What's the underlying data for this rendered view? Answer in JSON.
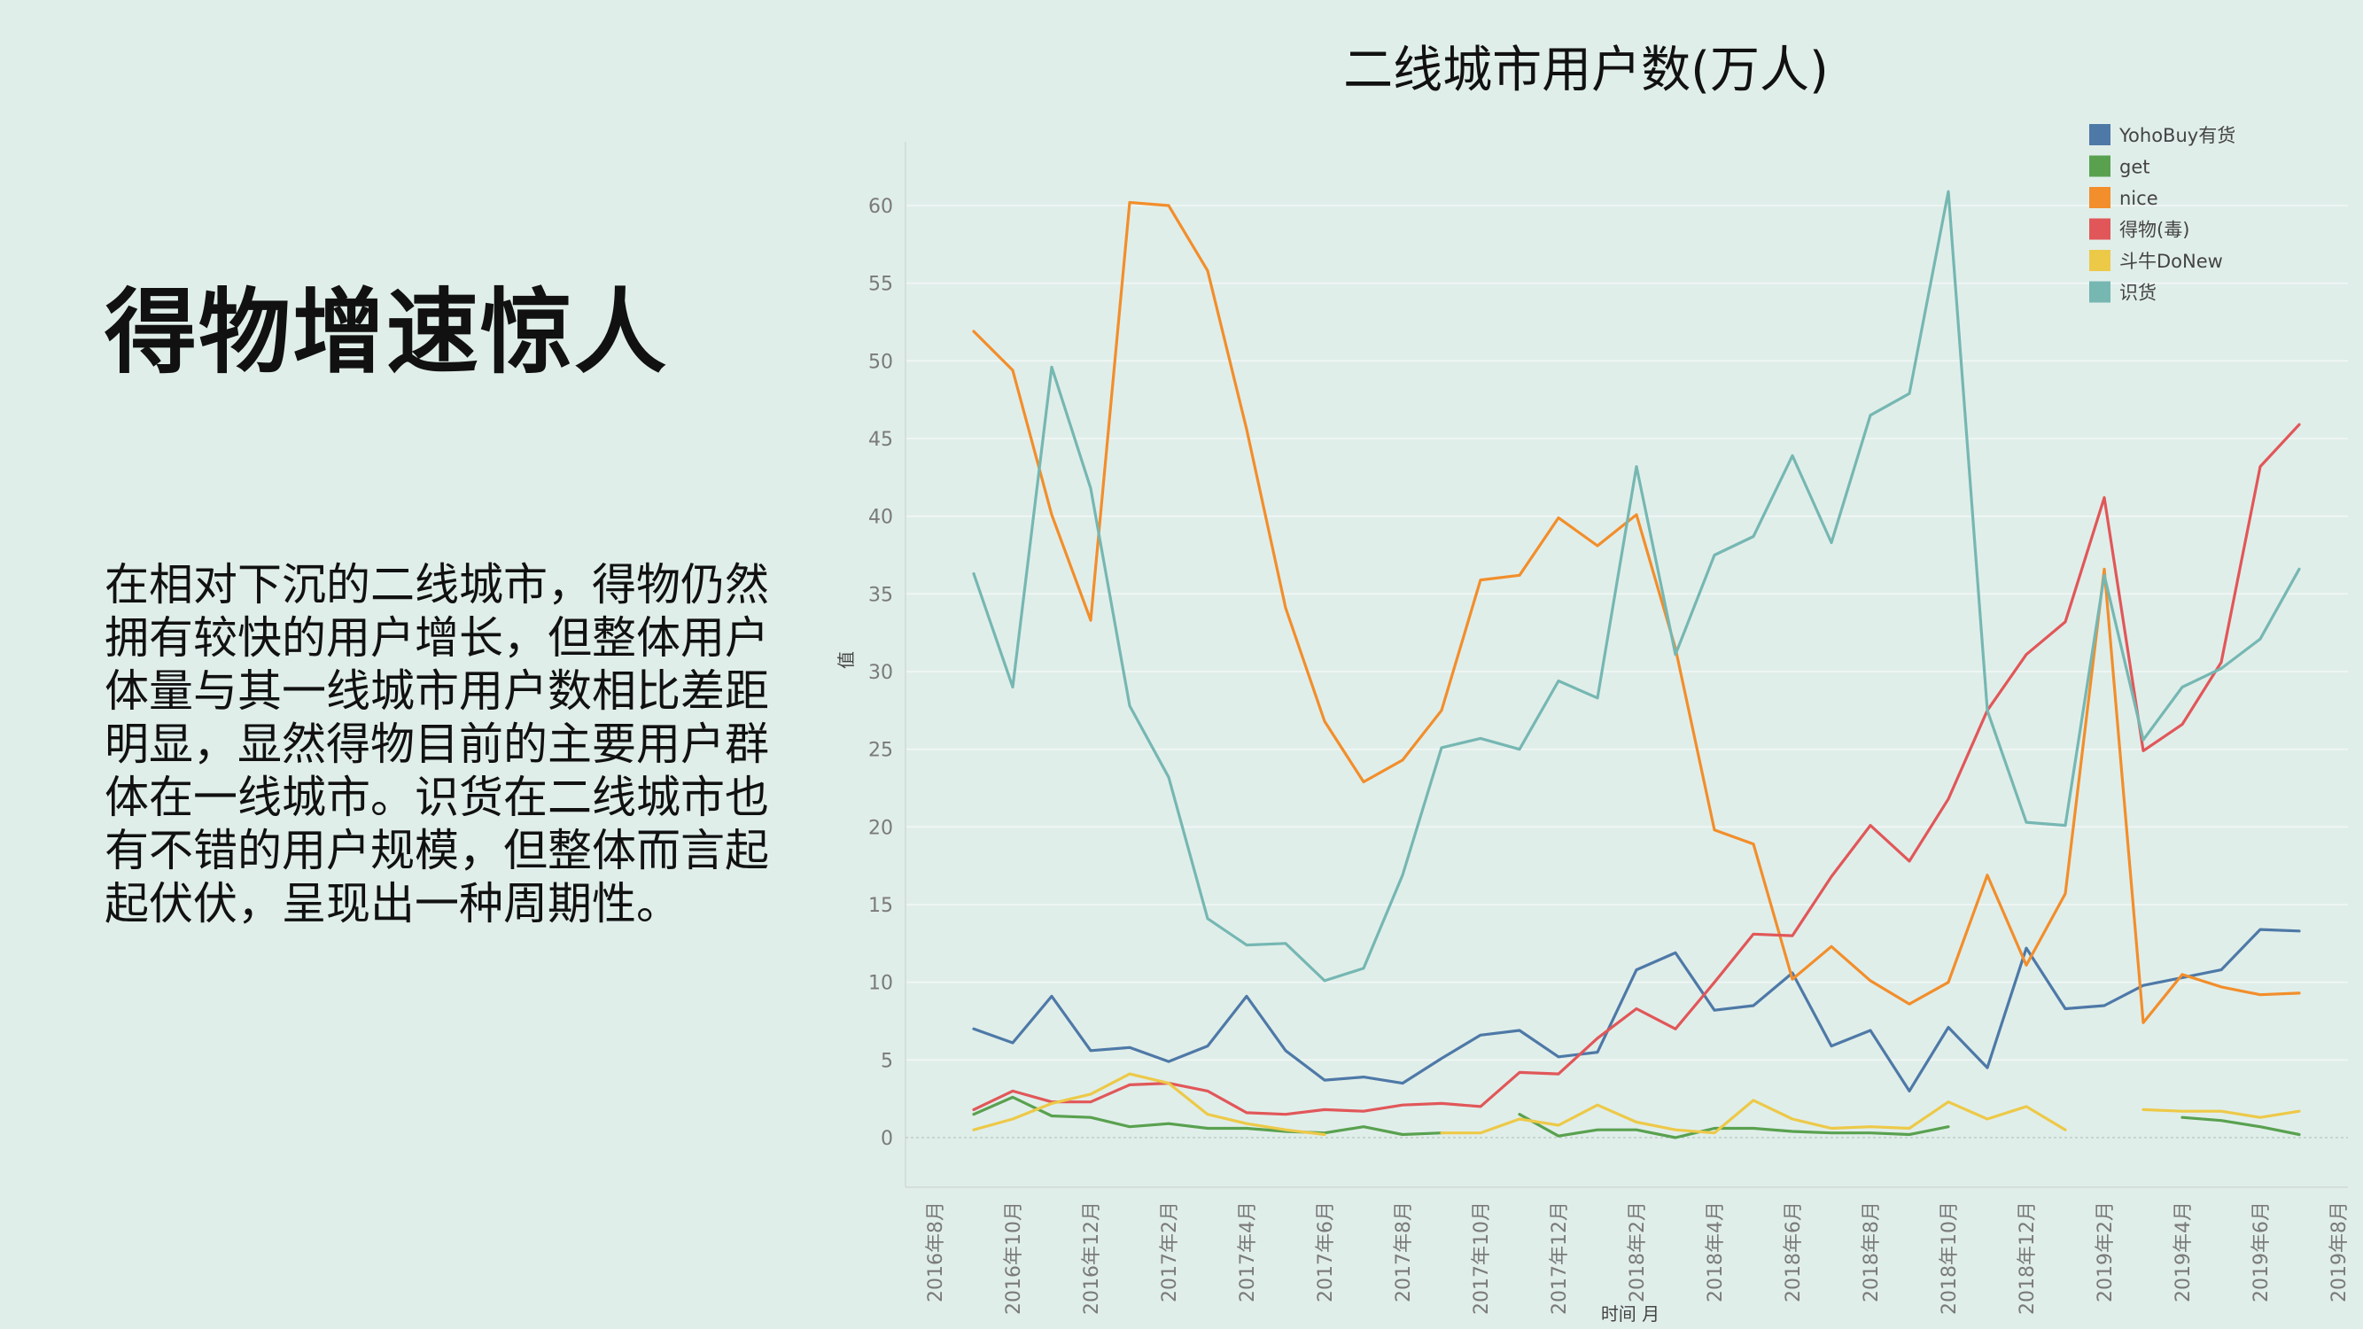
{
  "slide": {
    "heading": "得物增速惊人",
    "body": "在相对下沉的二线城市，得物仍然拥有较快的用户增长，但整体用户体量与其一线城市用户数相比差距明显，显然得物目前的主要用户群体在一线城市。识货在二线城市也有不错的用户规模，但整体而言起起伏伏，呈现出一种周期性。"
  },
  "chart_data": {
    "type": "line",
    "title": "二线城市用户数(万人)",
    "xlabel": "时间 月",
    "ylabel": "值",
    "ylim": [
      0,
      60
    ],
    "yticks": [
      0,
      5,
      10,
      15,
      20,
      25,
      30,
      35,
      40,
      45,
      50,
      55,
      60
    ],
    "grid": true,
    "legend_position": "top-right",
    "x_tick_labels": [
      "2016年8月",
      "2016年10月",
      "2016年12月",
      "2017年2月",
      "2017年4月",
      "2017年6月",
      "2017年8月",
      "2017年10月",
      "2017年12月",
      "2018年2月",
      "2018年4月",
      "2018年6月",
      "2018年8月",
      "2018年10月",
      "2018年12月",
      "2019年2月",
      "2019年4月",
      "2019年6月",
      "2019年8月"
    ],
    "x": [
      "2016年9月",
      "2016年10月",
      "2016年11月",
      "2016年12月",
      "2017年1月",
      "2017年2月",
      "2017年3月",
      "2017年4月",
      "2017年5月",
      "2017年6月",
      "2017年7月",
      "2017年8月",
      "2017年9月",
      "2017年10月",
      "2017年11月",
      "2017年12月",
      "2018年1月",
      "2018年2月",
      "2018年3月",
      "2018年4月",
      "2018年5月",
      "2018年6月",
      "2018年7月",
      "2018年8月",
      "2018年9月",
      "2018年10月",
      "2018年11月",
      "2018年12月",
      "2019年1月",
      "2019年2月",
      "2019年3月",
      "2019年4月",
      "2019年5月",
      "2019年6月",
      "2019年7月"
    ],
    "series": [
      {
        "name": "YohoBuy有货",
        "color": "#4e79a7",
        "values": [
          7.0,
          6.1,
          9.1,
          5.6,
          5.8,
          4.9,
          5.9,
          9.1,
          5.6,
          3.7,
          3.9,
          3.5,
          5.1,
          6.6,
          6.9,
          5.2,
          5.5,
          10.8,
          11.9,
          8.2,
          8.5,
          10.6,
          5.9,
          6.9,
          3.0,
          7.1,
          4.5,
          12.2,
          8.3,
          8.5,
          9.8,
          10.3,
          10.8,
          13.4,
          13.3
        ]
      },
      {
        "name": "get",
        "color": "#59a14f",
        "values": [
          1.5,
          2.6,
          1.4,
          1.3,
          0.7,
          0.9,
          0.6,
          0.6,
          0.4,
          0.3,
          0.7,
          0.2,
          0.3,
          null,
          1.5,
          0.1,
          0.5,
          0.5,
          0.0,
          0.6,
          0.6,
          0.4,
          0.3,
          0.3,
          0.2,
          0.7,
          null,
          null,
          null,
          null,
          null,
          1.3,
          1.1,
          0.7,
          0.2
        ]
      },
      {
        "name": "nice",
        "color": "#f28e2b",
        "values": [
          51.9,
          49.4,
          40.1,
          33.3,
          60.2,
          60.0,
          55.8,
          45.6,
          34.1,
          26.8,
          22.9,
          24.3,
          27.5,
          35.9,
          36.2,
          39.9,
          38.1,
          40.1,
          31.5,
          19.8,
          18.9,
          10.2,
          12.3,
          10.1,
          8.6,
          10.0,
          16.9,
          11.1,
          15.7,
          36.6,
          7.4,
          10.5,
          9.7,
          9.2,
          9.3
        ]
      },
      {
        "name": "得物(毒)",
        "color": "#e15759",
        "values": [
          1.8,
          3.0,
          2.3,
          2.3,
          3.4,
          3.5,
          3.0,
          1.6,
          1.5,
          1.8,
          1.7,
          2.1,
          2.2,
          2.0,
          4.2,
          4.1,
          6.4,
          8.3,
          7.0,
          10.0,
          13.1,
          13.0,
          16.8,
          20.1,
          17.8,
          21.8,
          27.5,
          31.1,
          33.2,
          41.2,
          24.9,
          26.6,
          30.6,
          43.2,
          45.9
        ]
      },
      {
        "name": "斗牛DoNew",
        "color": "#edc948",
        "values": [
          0.5,
          1.2,
          2.2,
          2.8,
          4.1,
          3.5,
          1.5,
          0.9,
          0.5,
          0.2,
          null,
          null,
          0.3,
          0.3,
          1.2,
          0.8,
          2.1,
          1.0,
          0.5,
          0.3,
          2.4,
          1.2,
          0.6,
          0.7,
          0.6,
          2.3,
          1.2,
          2.0,
          0.5,
          null,
          1.8,
          1.7,
          1.7,
          1.3,
          1.7
        ]
      },
      {
        "name": "识货",
        "color": "#76b7b2",
        "values": [
          36.3,
          29.0,
          49.6,
          41.8,
          27.8,
          23.2,
          14.1,
          12.4,
          12.5,
          10.1,
          10.9,
          16.9,
          25.1,
          25.7,
          25.0,
          29.4,
          28.3,
          43.2,
          31.1,
          37.5,
          38.7,
          43.9,
          38.3,
          46.5,
          47.9,
          60.9,
          27.5,
          20.3,
          20.1,
          36.2,
          25.6,
          29.0,
          30.2,
          32.1,
          36.6
        ]
      }
    ]
  }
}
